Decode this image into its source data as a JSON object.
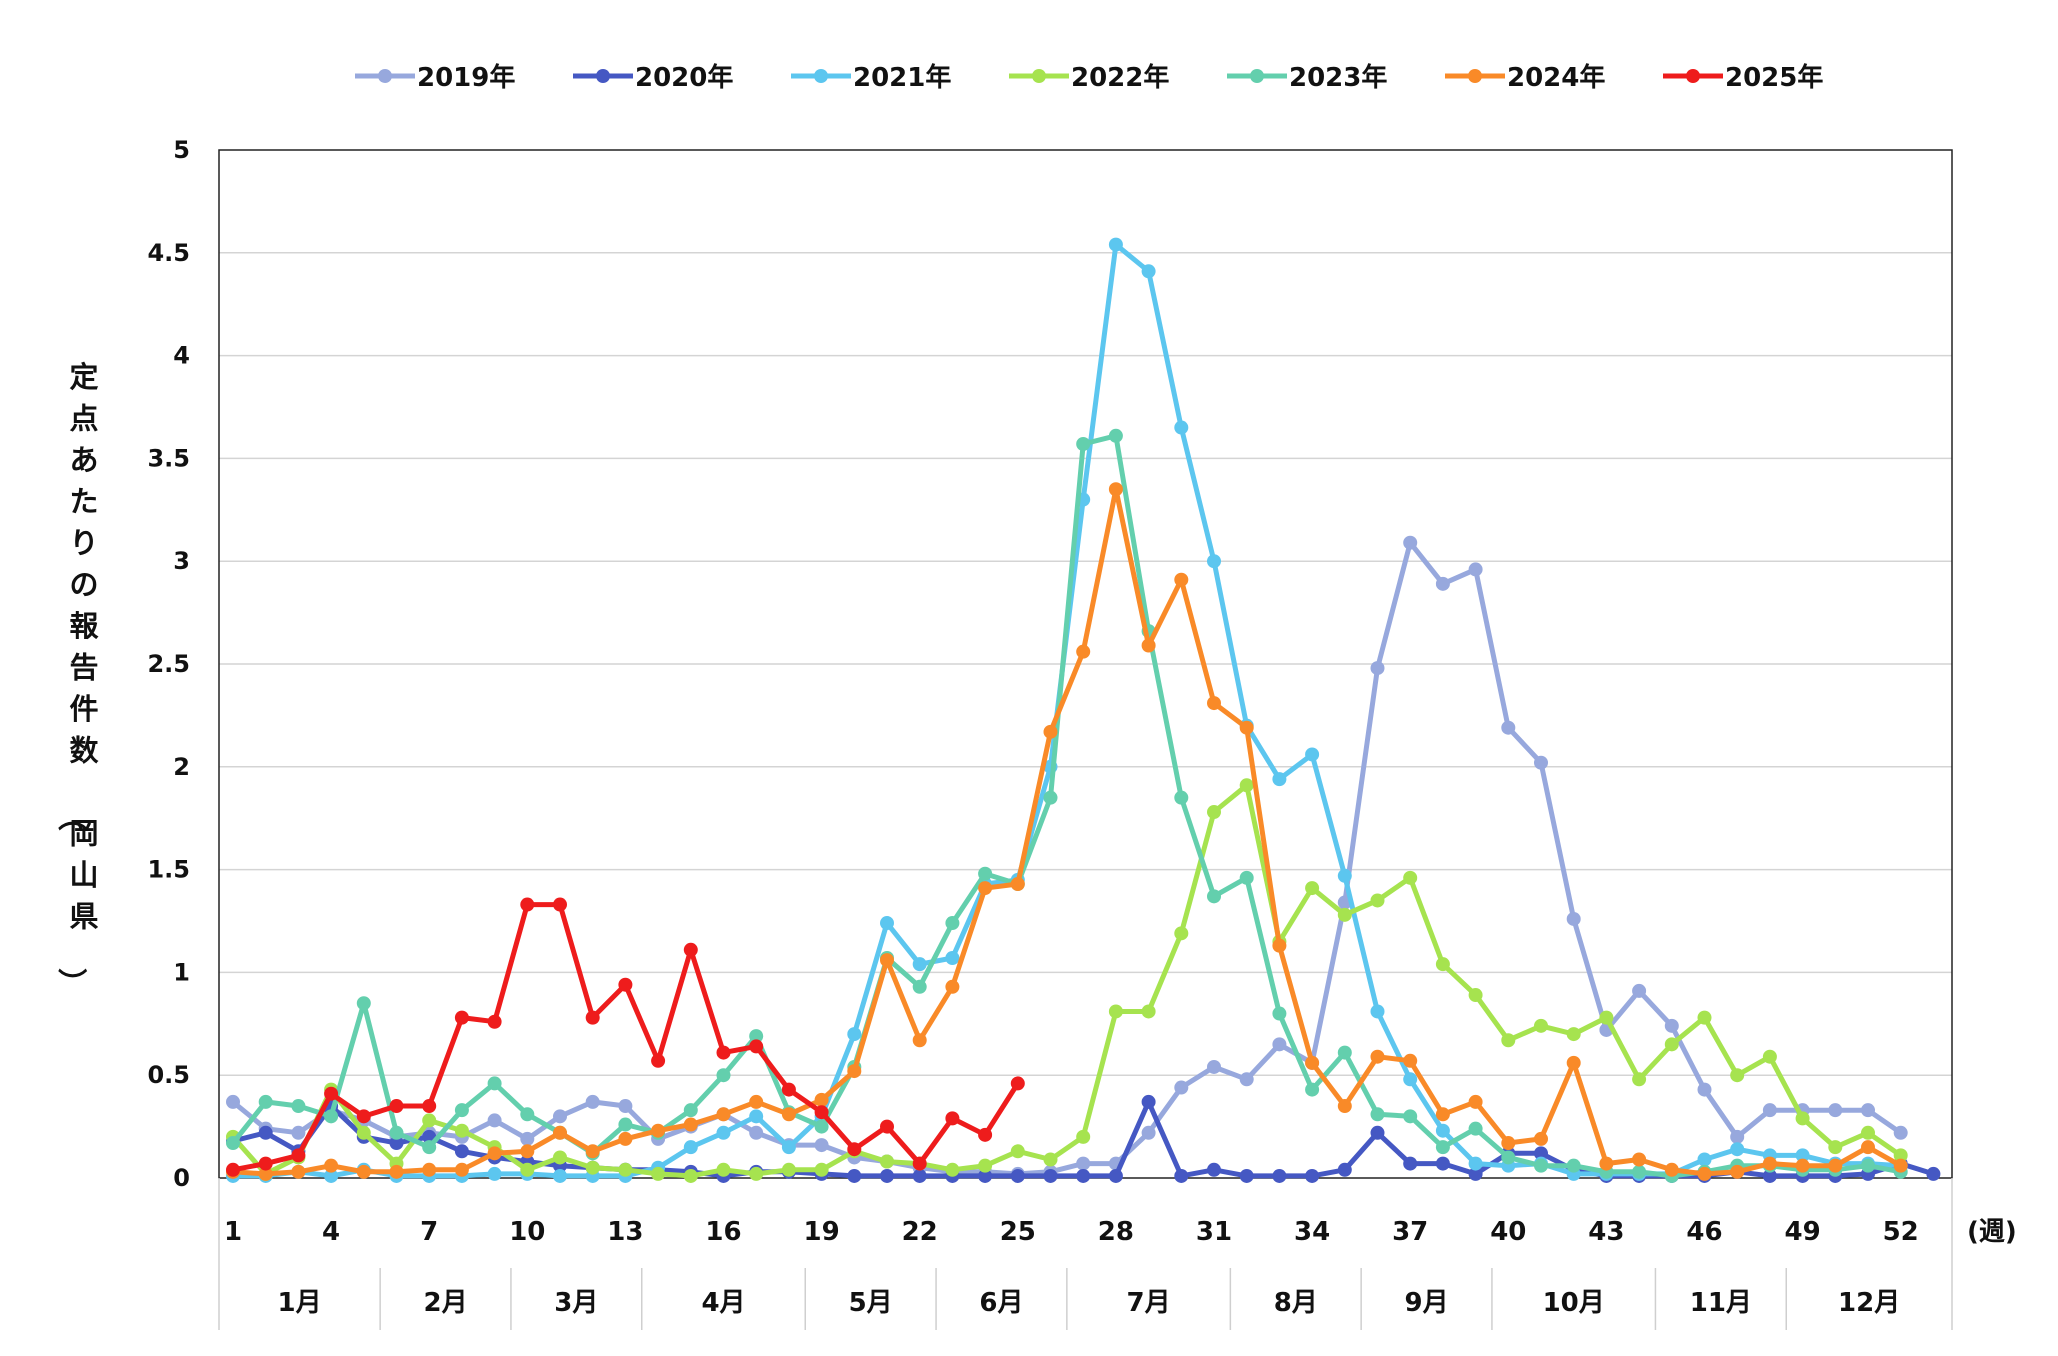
{
  "chart_data": {
    "type": "line",
    "title": "",
    "ylabel": "定点あたりの報告件数（岡山県）",
    "xlabel": "",
    "x_unit_label": "(週)",
    "ylim": [
      0,
      5
    ],
    "y_ticks": [
      "0",
      "0.5",
      "1",
      "1.5",
      "2",
      "2.5",
      "3",
      "3.5",
      "4",
      "4.5",
      "5"
    ],
    "x_range": [
      1,
      53
    ],
    "x_ticks": [
      "1",
      "4",
      "7",
      "10",
      "13",
      "16",
      "19",
      "22",
      "25",
      "28",
      "31",
      "34",
      "37",
      "40",
      "43",
      "46",
      "49",
      "52"
    ],
    "months": [
      {
        "label": "1月",
        "start_week": 1,
        "end_week": 5
      },
      {
        "label": "2月",
        "start_week": 6,
        "end_week": 9
      },
      {
        "label": "3月",
        "start_week": 10,
        "end_week": 13
      },
      {
        "label": "4月",
        "start_week": 14,
        "end_week": 18
      },
      {
        "label": "5月",
        "start_week": 19,
        "end_week": 22
      },
      {
        "label": "6月",
        "start_week": 23,
        "end_week": 26
      },
      {
        "label": "7月",
        "start_week": 27,
        "end_week": 31
      },
      {
        "label": "8月",
        "start_week": 32,
        "end_week": 35
      },
      {
        "label": "9月",
        "start_week": 36,
        "end_week": 39
      },
      {
        "label": "10月",
        "start_week": 40,
        "end_week": 44
      },
      {
        "label": "11月",
        "start_week": 45,
        "end_week": 48
      },
      {
        "label": "12月",
        "start_week": 49,
        "end_week": 53
      }
    ],
    "grid": "horizontal",
    "legend_position": "top",
    "series": [
      {
        "name": "2019年",
        "color": "#97a8dd",
        "values": [
          0.37,
          0.24,
          0.22,
          0.33,
          0.28,
          0.2,
          0.22,
          0.2,
          0.28,
          0.19,
          0.3,
          0.37,
          0.35,
          0.19,
          0.25,
          0.31,
          0.22,
          0.16,
          0.16,
          0.1,
          0.08,
          0.05,
          0.03,
          0.03,
          0.02,
          0.03,
          0.07,
          0.07,
          0.22,
          0.44,
          0.54,
          0.48,
          0.65,
          0.56,
          1.34,
          2.48,
          3.09,
          2.89,
          2.96,
          2.19,
          2.02,
          1.26,
          0.72,
          0.91,
          0.74,
          0.43,
          0.2,
          0.33,
          0.33,
          0.33,
          0.33,
          0.22
        ]
      },
      {
        "name": "2020年",
        "color": "#4558c3",
        "values": [
          0.18,
          0.22,
          0.13,
          0.35,
          0.2,
          0.17,
          0.2,
          0.13,
          0.1,
          0.08,
          0.06,
          0.05,
          0.04,
          0.04,
          0.03,
          0.01,
          0.03,
          0.03,
          0.02,
          0.01,
          0.01,
          0.01,
          0.01,
          0.01,
          0.01,
          0.01,
          0.01,
          0.01,
          0.37,
          0.01,
          0.04,
          0.01,
          0.01,
          0.01,
          0.04,
          0.22,
          0.07,
          0.07,
          0.02,
          0.12,
          0.12,
          0.04,
          0.01,
          0.01,
          0.01,
          0.01,
          0.03,
          0.01,
          0.01,
          0.01,
          0.02,
          0.07,
          0.02
        ]
      },
      {
        "name": "2021年",
        "color": "#5cc6ef",
        "values": [
          0.01,
          0.01,
          0.03,
          0.01,
          0.04,
          0.01,
          0.01,
          0.01,
          0.02,
          0.02,
          0.01,
          0.01,
          0.01,
          0.05,
          0.15,
          0.22,
          0.3,
          0.15,
          0.3,
          0.7,
          1.24,
          1.04,
          1.07,
          1.43,
          1.45,
          2.0,
          3.3,
          4.54,
          4.41,
          3.65,
          3.0,
          2.2,
          1.94,
          2.06,
          1.47,
          0.81,
          0.48,
          0.23,
          0.07,
          0.06,
          0.07,
          0.02,
          0.02,
          0.02,
          0.02,
          0.09,
          0.14,
          0.11,
          0.11,
          0.07,
          0.07,
          0.06
        ]
      },
      {
        "name": "2022年",
        "color": "#a6e34f",
        "values": [
          0.2,
          0.02,
          0.1,
          0.43,
          0.22,
          0.07,
          0.28,
          0.23,
          0.15,
          0.04,
          0.1,
          0.05,
          0.04,
          0.02,
          0.01,
          0.04,
          0.02,
          0.04,
          0.04,
          0.13,
          0.08,
          0.07,
          0.04,
          0.06,
          0.13,
          0.09,
          0.2,
          0.81,
          0.81,
          1.19,
          1.78,
          1.91,
          1.15,
          1.41,
          1.28,
          1.35,
          1.46,
          1.04,
          0.89,
          0.67,
          0.74,
          0.7,
          0.78,
          0.48,
          0.65,
          0.78,
          0.5,
          0.59,
          0.29,
          0.15,
          0.22,
          0.11
        ]
      },
      {
        "name": "2023年",
        "color": "#63cfad",
        "values": [
          0.17,
          0.37,
          0.35,
          0.3,
          0.85,
          0.22,
          0.15,
          0.33,
          0.46,
          0.31,
          0.22,
          0.12,
          0.26,
          0.22,
          0.33,
          0.5,
          0.69,
          0.32,
          0.25,
          0.54,
          1.07,
          0.93,
          1.24,
          1.48,
          1.43,
          1.85,
          3.57,
          3.61,
          2.66,
          1.85,
          1.37,
          1.46,
          0.8,
          0.43,
          0.61,
          0.31,
          0.3,
          0.15,
          0.24,
          0.1,
          0.06,
          0.06,
          0.03,
          0.03,
          0.01,
          0.03,
          0.06,
          0.06,
          0.04,
          0.04,
          0.06,
          0.03
        ]
      },
      {
        "name": "2024年",
        "color": "#f98a28",
        "values": [
          0.03,
          0.02,
          0.03,
          0.06,
          0.03,
          0.03,
          0.04,
          0.04,
          0.12,
          0.13,
          0.22,
          0.13,
          0.19,
          0.23,
          0.26,
          0.31,
          0.37,
          0.31,
          0.38,
          0.52,
          1.06,
          0.67,
          0.93,
          1.41,
          1.43,
          2.17,
          2.56,
          3.35,
          2.59,
          2.91,
          2.31,
          2.19,
          1.13,
          0.56,
          0.35,
          0.59,
          0.57,
          0.31,
          0.37,
          0.17,
          0.19,
          0.56,
          0.07,
          0.09,
          0.04,
          0.02,
          0.03,
          0.07,
          0.06,
          0.06,
          0.15,
          0.06
        ]
      },
      {
        "name": "2025年",
        "color": "#ee1c1c",
        "values": [
          0.04,
          0.07,
          0.11,
          0.41,
          0.3,
          0.35,
          0.35,
          0.78,
          0.76,
          1.33,
          1.33,
          0.78,
          0.94,
          0.57,
          1.11,
          0.61,
          0.64,
          0.43,
          0.32,
          0.14,
          0.25,
          0.07,
          0.29,
          0.21,
          0.46
        ]
      }
    ]
  }
}
